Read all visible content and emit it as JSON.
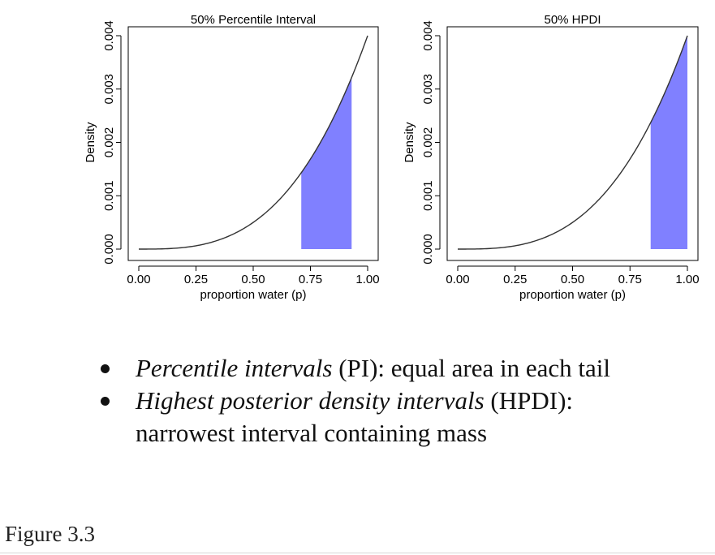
{
  "figure_label": "Figure 3.3",
  "bullets": [
    {
      "term": "Percentile intervals",
      "rest": " (PI): equal area in each tail"
    },
    {
      "term": "Highest posterior density intervals",
      "rest": " (HPDI):",
      "line2": "narrowest interval containing mass"
    }
  ],
  "colors": {
    "fill": "#8080ff",
    "curve": "#333333",
    "axis": "#000000"
  },
  "chart_data": [
    {
      "type": "area",
      "title": "50% Percentile Interval",
      "xlabel": "proportion water (p)",
      "ylabel": "Density",
      "xlim": [
        0,
        1
      ],
      "ylim": [
        0,
        0.004
      ],
      "x_ticks": [
        "0.00",
        "0.25",
        "0.50",
        "0.75",
        "1.00"
      ],
      "y_ticks": [
        "0.000",
        "0.001",
        "0.002",
        "0.003",
        "0.004"
      ],
      "curve": {
        "x": [
          0,
          0.1,
          0.2,
          0.3,
          0.4,
          0.5,
          0.6,
          0.7,
          0.8,
          0.9,
          1.0
        ],
        "y": [
          0,
          4e-06,
          3.2e-05,
          0.000108,
          0.000256,
          0.0005,
          0.000864,
          0.001372,
          0.002048,
          0.002916,
          0.004
        ]
      },
      "shaded_interval": [
        0.71,
        0.93
      ],
      "grid": false
    },
    {
      "type": "area",
      "title": "50% HPDI",
      "xlabel": "proportion water (p)",
      "ylabel": "Density",
      "xlim": [
        0,
        1
      ],
      "ylim": [
        0,
        0.004
      ],
      "x_ticks": [
        "0.00",
        "0.25",
        "0.50",
        "0.75",
        "1.00"
      ],
      "y_ticks": [
        "0.000",
        "0.001",
        "0.002",
        "0.003",
        "0.004"
      ],
      "curve": {
        "x": [
          0,
          0.1,
          0.2,
          0.3,
          0.4,
          0.5,
          0.6,
          0.7,
          0.8,
          0.9,
          1.0
        ],
        "y": [
          0,
          4e-06,
          3.2e-05,
          0.000108,
          0.000256,
          0.0005,
          0.000864,
          0.001372,
          0.002048,
          0.002916,
          0.004
        ]
      },
      "shaded_interval": [
        0.84,
        1.0
      ],
      "grid": false
    }
  ]
}
